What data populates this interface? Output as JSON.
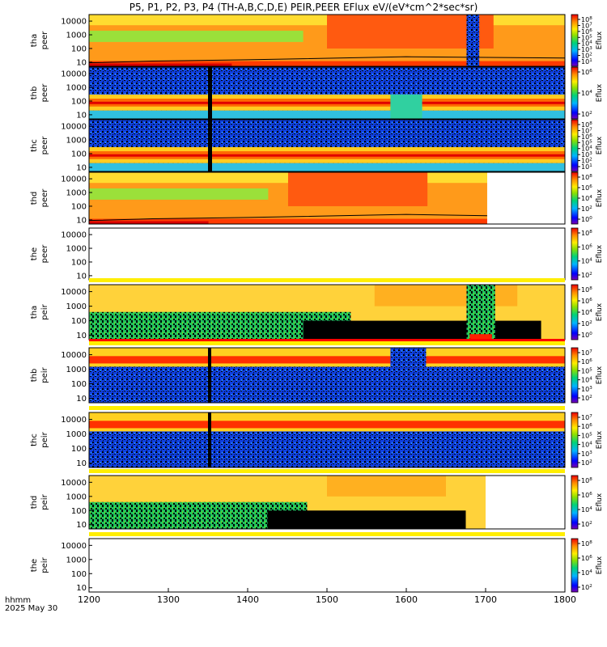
{
  "chart_data": {
    "type": "heatmap",
    "title": "P5, P1, P2, P3, P4 (TH-A,B,C,D,E) PEIR,PEER EFlux eV/(eV*cm^2*sec*sr)",
    "x_axis": {
      "label_lines": [
        "hhmm",
        "2025 May 30"
      ],
      "range": [
        1200,
        1800
      ],
      "ticks": [
        "1200",
        "1300",
        "1400",
        "1500",
        "1600",
        "1700",
        "1800"
      ]
    },
    "y_axis": {
      "scale": "log",
      "range": [
        5,
        30000
      ]
    },
    "colorbar_label": "Eflux",
    "panels": [
      {
        "probe": "tha",
        "instrument": "peer",
        "y_ticks": [
          "10000",
          "1000",
          "100",
          "10"
        ],
        "cb_ticks": [
          "10^8",
          "10^7",
          "10^6",
          "10^5",
          "10^4",
          "10^3",
          "10^2",
          "10^1"
        ],
        "data_end": 1800,
        "band": false
      },
      {
        "probe": "thb",
        "instrument": "peer",
        "y_ticks": [
          "10000",
          "1000",
          "100",
          "10"
        ],
        "cb_ticks": [
          "10^6",
          "10^4",
          "10^2"
        ],
        "data_end": 1800,
        "band": false
      },
      {
        "probe": "thc",
        "instrument": "peer",
        "y_ticks": [
          "10000",
          "1000",
          "100",
          "10"
        ],
        "cb_ticks": [
          "10^8",
          "10^7",
          "10^6",
          "10^5",
          "10^4",
          "10^3",
          "10^2",
          "10^1"
        ],
        "data_end": 1800,
        "band": false
      },
      {
        "probe": "thd",
        "instrument": "peer",
        "y_ticks": [
          "10000",
          "1000",
          "100",
          "10"
        ],
        "cb_ticks": [
          "10^8",
          "10^6",
          "10^4",
          "10^2",
          "10^0"
        ],
        "data_end": 1702,
        "band": false
      },
      {
        "probe": "the",
        "instrument": "peer",
        "y_ticks": [
          "10000",
          "1000",
          "100",
          "10"
        ],
        "cb_ticks": [
          "10^8",
          "10^6",
          "10^4",
          "10^2"
        ],
        "data_end": 1200,
        "band": false
      },
      {
        "probe": "tha",
        "instrument": "peir",
        "y_ticks": [
          "10000",
          "1000",
          "100",
          "10"
        ],
        "cb_ticks": [
          "10^8",
          "10^6",
          "10^4",
          "10^2",
          "10^0"
        ],
        "data_end": 1800,
        "band": true
      },
      {
        "probe": "thb",
        "instrument": "peir",
        "y_ticks": [
          "10000",
          "1000",
          "100",
          "10"
        ],
        "cb_ticks": [
          "10^7",
          "10^6",
          "10^5",
          "10^4",
          "10^3",
          "10^2"
        ],
        "data_end": 1800,
        "band": true
      },
      {
        "probe": "thc",
        "instrument": "peir",
        "y_ticks": [
          "10000",
          "1000",
          "100",
          "10"
        ],
        "cb_ticks": [
          "10^7",
          "10^6",
          "10^5",
          "10^4",
          "10^3",
          "10^2"
        ],
        "data_end": 1800,
        "band": true
      },
      {
        "probe": "thd",
        "instrument": "peir",
        "y_ticks": [
          "10000",
          "1000",
          "100",
          "10"
        ],
        "cb_ticks": [
          "10^8",
          "10^6",
          "10^4",
          "10^2"
        ],
        "data_end": 1700,
        "band": true
      },
      {
        "probe": "the",
        "instrument": "peir",
        "y_ticks": [
          "10000",
          "1000",
          "100",
          "10"
        ],
        "cb_ticks": [
          "10^8",
          "10^6",
          "10^4",
          "10^2"
        ],
        "data_end": 1200,
        "band": true
      }
    ]
  }
}
